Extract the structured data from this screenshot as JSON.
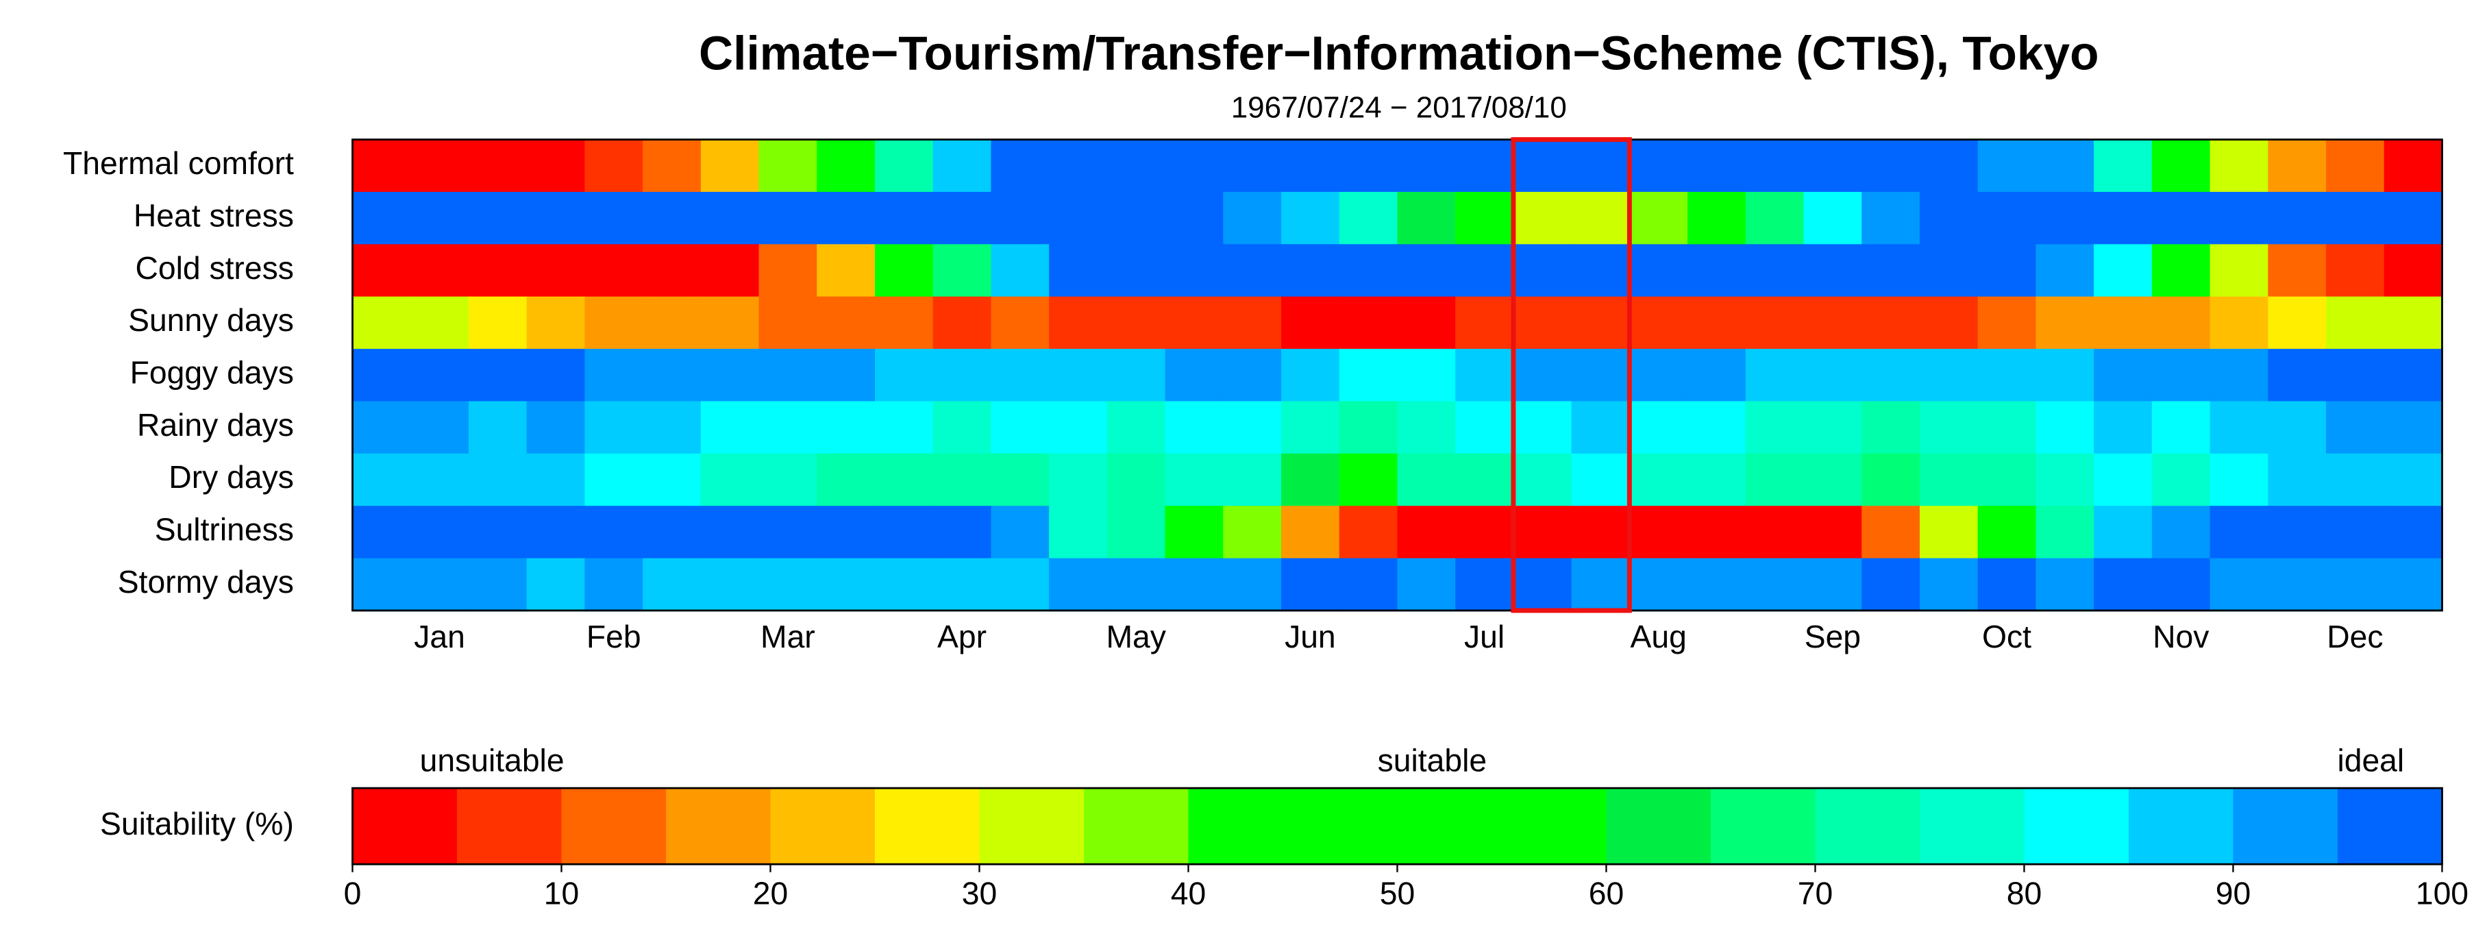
{
  "chart_data": {
    "type": "heatmap",
    "title": "Climate−Tourism/Transfer−Information−Scheme (CTIS), Tokyo",
    "subtitle": "1967/07/24 − 2017/08/10",
    "categories": [
      null,
      "Jan",
      null,
      null,
      "Feb",
      null,
      null,
      "Mar",
      null,
      null,
      "Apr",
      null,
      null,
      "May",
      null,
      null,
      "Jun",
      null,
      null,
      "Jul",
      null,
      null,
      "Aug",
      null,
      null,
      "Sep",
      null,
      null,
      "Oct",
      null,
      null,
      "Nov",
      null,
      null,
      "Dec",
      null
    ],
    "highlight_columns": [
      20,
      21
    ],
    "highlight_color": "#ee1111",
    "series": [
      {
        "name": "Thermal comfort",
        "values": [
          2.5,
          2.5,
          2.5,
          2.5,
          7.5,
          12.5,
          22.5,
          37.5,
          50,
          72.5,
          87.5,
          97.5,
          97.5,
          97.5,
          97.5,
          97.5,
          97.5,
          97.5,
          97.5,
          97.5,
          97.5,
          97.5,
          97.5,
          97.5,
          97.5,
          97.5,
          97.5,
          97.5,
          92.5,
          92.5,
          77.5,
          50,
          32.5,
          17.5,
          12.5,
          2.5
        ]
      },
      {
        "name": "Heat stress",
        "values": [
          97.5,
          97.5,
          97.5,
          97.5,
          97.5,
          97.5,
          97.5,
          97.5,
          97.5,
          97.5,
          97.5,
          97.5,
          97.5,
          97.5,
          97.5,
          92.5,
          87.5,
          77.5,
          62.5,
          50,
          32.5,
          32.5,
          37.5,
          50,
          67.5,
          82.5,
          92.5,
          97.5,
          97.5,
          97.5,
          97.5,
          97.5,
          97.5,
          97.5,
          97.5,
          97.5
        ]
      },
      {
        "name": "Cold stress",
        "values": [
          2.5,
          2.5,
          2.5,
          2.5,
          2.5,
          2.5,
          2.5,
          12.5,
          22.5,
          50,
          67.5,
          87.5,
          97.5,
          97.5,
          97.5,
          97.5,
          97.5,
          97.5,
          97.5,
          97.5,
          97.5,
          97.5,
          97.5,
          97.5,
          97.5,
          97.5,
          97.5,
          97.5,
          97.5,
          92.5,
          82.5,
          50,
          32.5,
          12.5,
          7.5,
          2.5
        ]
      },
      {
        "name": "Sunny days",
        "values": [
          32.5,
          32.5,
          27.5,
          22.5,
          17.5,
          17.5,
          17.5,
          12.5,
          12.5,
          12.5,
          7.5,
          12.5,
          7.5,
          7.5,
          7.5,
          7.5,
          2.5,
          2.5,
          2.5,
          7.5,
          7.5,
          7.5,
          7.5,
          7.5,
          7.5,
          7.5,
          7.5,
          7.5,
          12.5,
          17.5,
          17.5,
          17.5,
          22.5,
          27.5,
          32.5,
          32.5
        ]
      },
      {
        "name": "Foggy days",
        "values": [
          97.5,
          97.5,
          97.5,
          97.5,
          92.5,
          92.5,
          92.5,
          92.5,
          92.5,
          87.5,
          87.5,
          87.5,
          87.5,
          87.5,
          92.5,
          92.5,
          87.5,
          82.5,
          82.5,
          87.5,
          92.5,
          92.5,
          92.5,
          92.5,
          87.5,
          87.5,
          87.5,
          87.5,
          87.5,
          87.5,
          92.5,
          92.5,
          92.5,
          97.5,
          97.5,
          97.5
        ]
      },
      {
        "name": "Rainy days",
        "values": [
          92.5,
          92.5,
          87.5,
          92.5,
          87.5,
          87.5,
          82.5,
          82.5,
          82.5,
          82.5,
          77.5,
          82.5,
          82.5,
          77.5,
          82.5,
          82.5,
          77.5,
          72.5,
          77.5,
          82.5,
          82.5,
          87.5,
          82.5,
          82.5,
          77.5,
          77.5,
          72.5,
          77.5,
          77.5,
          82.5,
          87.5,
          82.5,
          87.5,
          87.5,
          92.5,
          92.5
        ]
      },
      {
        "name": "Dry days",
        "values": [
          87.5,
          87.5,
          87.5,
          87.5,
          82.5,
          82.5,
          77.5,
          77.5,
          72.5,
          72.5,
          72.5,
          72.5,
          77.5,
          72.5,
          77.5,
          77.5,
          62.5,
          50,
          72.5,
          72.5,
          77.5,
          82.5,
          77.5,
          77.5,
          72.5,
          72.5,
          67.5,
          72.5,
          72.5,
          77.5,
          82.5,
          77.5,
          82.5,
          87.5,
          87.5,
          87.5
        ]
      },
      {
        "name": "Sultriness",
        "values": [
          97.5,
          97.5,
          97.5,
          97.5,
          97.5,
          97.5,
          97.5,
          97.5,
          97.5,
          97.5,
          97.5,
          92.5,
          77.5,
          72.5,
          50,
          37.5,
          17.5,
          7.5,
          2.5,
          2.5,
          2.5,
          2.5,
          2.5,
          2.5,
          2.5,
          2.5,
          12.5,
          32.5,
          50,
          72.5,
          87.5,
          92.5,
          97.5,
          97.5,
          97.5,
          97.5
        ]
      },
      {
        "name": "Stormy days",
        "values": [
          92.5,
          92.5,
          92.5,
          87.5,
          92.5,
          87.5,
          87.5,
          87.5,
          87.5,
          87.5,
          87.5,
          87.5,
          92.5,
          92.5,
          92.5,
          92.5,
          97.5,
          97.5,
          92.5,
          97.5,
          97.5,
          92.5,
          92.5,
          92.5,
          92.5,
          92.5,
          97.5,
          92.5,
          97.5,
          92.5,
          97.5,
          97.5,
          92.5,
          92.5,
          92.5,
          92.5
        ]
      }
    ],
    "colorbar": {
      "label": "Suitability (%)",
      "labels": [
        "unsuitable",
        "suitable",
        "ideal"
      ],
      "xlim": [
        0,
        100
      ],
      "xticks": [
        0,
        10,
        20,
        30,
        40,
        50,
        60,
        70,
        80,
        90,
        100
      ],
      "colors": [
        "#ff0000",
        "#ff3300",
        "#ff6600",
        "#ff9900",
        "#ffbf00",
        "#ffee00",
        "#ccff00",
        "#80ff00",
        "#00ff00",
        "#00ff00",
        "#00ff00",
        "#00ff00",
        "#00ee44",
        "#00ff77",
        "#00ffaa",
        "#00ffcc",
        "#00ffff",
        "#00ccff",
        "#0099ff",
        "#0066ff"
      ]
    }
  }
}
